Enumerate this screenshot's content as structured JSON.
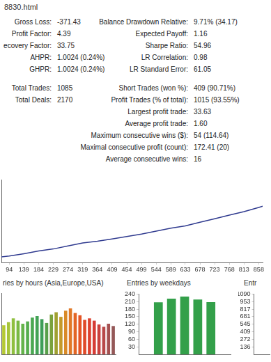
{
  "header": {
    "title": "8830.html"
  },
  "stats": {
    "left_groups": [
      [
        [
          "Gross Loss:",
          "-371.43"
        ],
        [
          "Profit Factor:",
          "4.39"
        ],
        [
          "ecovery Factor:",
          "33.75"
        ],
        [
          "AHPR:",
          "1.0024 (0.24%)"
        ],
        [
          "GHPR:",
          "1.0024 (0.24%)"
        ]
      ],
      [
        [
          "Total Trades:",
          "1085"
        ],
        [
          "Total Deals:",
          "2170"
        ]
      ]
    ],
    "right_groups": [
      [
        [
          "Balance Drawdown Relative:",
          "9.71% (34.17)"
        ],
        [
          "Expected Payoff:",
          "1.16"
        ],
        [
          "Sharpe Ratio:",
          "54.96"
        ],
        [
          "LR Correlation:",
          "0.98"
        ],
        [
          "LR Standard Error:",
          "61.05"
        ]
      ],
      [
        [
          "Short Trades (won %):",
          "409 (90.71%)"
        ],
        [
          "Profit Trades (% of total):",
          "1015 (93.55%)"
        ],
        [
          "Largest profit trade:",
          "33.63"
        ],
        [
          "Average profit trade:",
          "1.60"
        ],
        [
          "Maximum consecutive wins ($):",
          "54 (114.64)"
        ],
        [
          "Maximal consecutive profit (count):",
          "172.41 (20)"
        ],
        [
          "Average consecutive wins:",
          "16"
        ]
      ]
    ]
  },
  "chart_data": [
    {
      "type": "line",
      "x": [
        70,
        94,
        139,
        184,
        229,
        274,
        319,
        364,
        409,
        454,
        499,
        544,
        589,
        633,
        678,
        723,
        768,
        813,
        858,
        870
      ],
      "values": [
        95,
        110,
        150,
        195,
        230,
        280,
        330,
        360,
        400,
        440,
        480,
        530,
        580,
        620,
        680,
        740,
        800,
        860,
        930,
        950
      ],
      "color": "#2f3a8f",
      "xlim": [
        70,
        870
      ],
      "xticks": [
        94,
        139,
        184,
        229,
        274,
        319,
        364,
        409,
        454,
        499,
        544,
        589,
        633,
        678,
        723,
        768,
        813,
        858
      ],
      "ylim": [
        0,
        1400
      ],
      "tick_labels": "x",
      "grid": false
    },
    {
      "type": "bar",
      "title": "ries by hours (Asia,Europe,USA)",
      "categories": [
        null,
        null,
        null,
        null,
        null,
        null,
        null,
        null,
        null,
        null,
        null,
        null,
        null,
        null,
        null,
        null,
        null,
        null,
        null,
        null,
        null,
        null,
        null,
        null
      ],
      "values": [
        38,
        42,
        47,
        44,
        40,
        43,
        48,
        50,
        46,
        41,
        52,
        55,
        49,
        57,
        60,
        54,
        51,
        45,
        47,
        44,
        39,
        36,
        40,
        37
      ],
      "colors": [
        "#b5c934",
        "#a6c43a",
        "#8fbf3f",
        "#79b944",
        "#64b34a",
        "#55ad4e",
        "#4aa852",
        "#42a356",
        "#3e9e58",
        "#58a04a",
        "#7aa23c",
        "#a0a030",
        "#c49a2a",
        "#d98a28",
        "#e07826",
        "#e36524",
        "#e45424",
        "#e04a2a",
        "#dc4230",
        "#d63c36",
        "#c9413e",
        "#b84848",
        "#a55050",
        "#955858"
      ],
      "ylim": [
        0,
        80
      ],
      "tick_labels": false,
      "grid": false
    },
    {
      "type": "bar",
      "title": "Entries by weekdays",
      "categories": [
        null,
        null,
        null,
        null,
        null,
        null,
        null
      ],
      "values": [
        0,
        207,
        222,
        230,
        218,
        208,
        0
      ],
      "color": "#33a04a",
      "ylim": [
        0,
        240
      ],
      "yticks": [
        30,
        60,
        90,
        120,
        150,
        180,
        210,
        240
      ],
      "tick_labels": "y",
      "grid": false
    },
    {
      "type": "bar",
      "title": "Entr",
      "categories": [],
      "values": [],
      "ylim": [
        0,
        1090
      ],
      "yticks": [
        136,
        272,
        409,
        545,
        681,
        817,
        953,
        1090
      ],
      "tick_labels": "y",
      "grid": false
    }
  ]
}
